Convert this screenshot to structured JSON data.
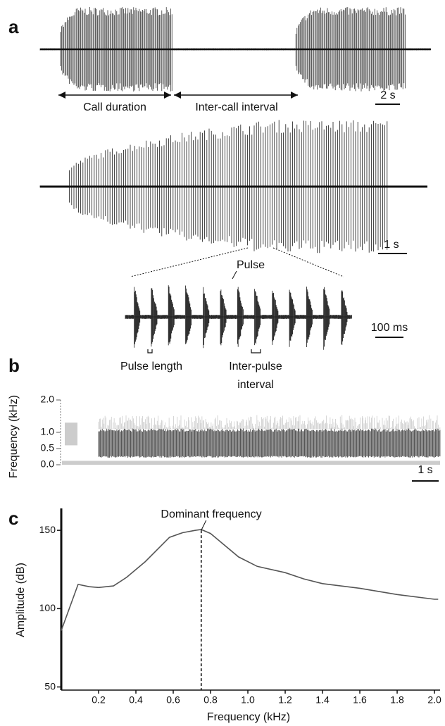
{
  "chart_data": [
    {
      "type": "waveform",
      "panel_label": "a",
      "annotations": {
        "call_duration": "Call duration",
        "inter_call_interval": "Inter-call interval",
        "pulse": "Pulse",
        "pulse_length": "Pulse length",
        "inter_pulse_interval": [
          "Inter-pulse",
          "interval"
        ]
      },
      "scale_bars": [
        "2 s",
        "1 s",
        "100 ms"
      ]
    },
    {
      "type": "spectrogram",
      "panel_label": "b",
      "ylabel": "Frequency (kHz)",
      "ylim": [
        0,
        2
      ],
      "yticks": [
        {
          "value": 0,
          "label": "0.0"
        },
        {
          "value": 0.5,
          "label": "0.5"
        },
        {
          "value": 1,
          "label": "1.0"
        },
        {
          "value": 2,
          "label": "2.0"
        }
      ],
      "scale_bar": "1 s"
    },
    {
      "type": "line",
      "panel_label": "c",
      "xlabel": "Frequency (kHz)",
      "ylabel": "Amplitude (dB)",
      "annotation": "Dominant frequency",
      "dominant_x": 0.75,
      "color": "#555555",
      "x": [
        0,
        0.09,
        0.15,
        0.2,
        0.28,
        0.35,
        0.45,
        0.58,
        0.65,
        0.72,
        0.75,
        0.8,
        0.95,
        1.05,
        1.2,
        1.3,
        1.4,
        1.6,
        1.8,
        2.0,
        2.02
      ],
      "values": [
        86,
        115.5,
        114,
        113.5,
        114.5,
        120,
        130,
        145.5,
        148.5,
        150,
        150.5,
        148,
        133,
        127,
        123,
        119,
        116,
        113,
        109,
        106,
        106
      ],
      "xlim": [
        0,
        2.03
      ],
      "ylim": [
        48,
        164
      ],
      "xticks": [
        {
          "value": 0.2,
          "label": "0.2"
        },
        {
          "value": 0.4,
          "label": "0.4"
        },
        {
          "value": 0.6,
          "label": "0.6"
        },
        {
          "value": 0.8,
          "label": "0.8"
        },
        {
          "value": 1,
          "label": "1.0"
        },
        {
          "value": 1.2,
          "label": "1.2"
        },
        {
          "value": 1.4,
          "label": "1.4"
        },
        {
          "value": 1.6,
          "label": "1.6"
        },
        {
          "value": 1.8,
          "label": "1.8"
        },
        {
          "value": 2,
          "label": "2.0"
        }
      ],
      "yticks": [
        50,
        100,
        150
      ]
    }
  ]
}
